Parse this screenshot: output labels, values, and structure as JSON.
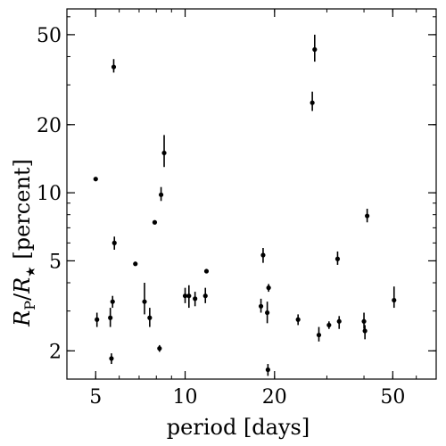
{
  "chart_data": {
    "type": "scatter",
    "title": "",
    "xlabel": "period [days]",
    "ylabel": {
      "R1": "R",
      "sub1": "P",
      "slash": "/",
      "R2": "R",
      "sub2": "★",
      "unit": " [percent]"
    },
    "xscale": "log",
    "yscale": "log",
    "xlim": [
      4.0,
      70.0
    ],
    "ylim": [
      1.5,
      65.0
    ],
    "xticks": [
      5,
      10,
      20,
      50
    ],
    "xtick_labels": [
      "5",
      "10",
      "20",
      "50"
    ],
    "yticks": [
      2,
      5,
      10,
      20,
      50
    ],
    "ytick_labels": [
      "2",
      "5",
      "10",
      "20",
      "50"
    ],
    "grid": false,
    "series": [
      {
        "marker_color": "#000000",
        "points": [
          {
            "x": 5.0,
            "y": 11.5,
            "ylo": 11.5,
            "yhi": 11.5
          },
          {
            "x": 5.05,
            "y": 2.75,
            "ylo": 2.55,
            "yhi": 2.95
          },
          {
            "x": 5.6,
            "y": 2.8,
            "ylo": 2.55,
            "yhi": 3.1
          },
          {
            "x": 5.65,
            "y": 1.85,
            "ylo": 1.75,
            "yhi": 1.95
          },
          {
            "x": 5.7,
            "y": 3.3,
            "ylo": 3.1,
            "yhi": 3.5
          },
          {
            "x": 5.75,
            "y": 36.0,
            "ylo": 34.0,
            "yhi": 39.0
          },
          {
            "x": 5.78,
            "y": 6.0,
            "ylo": 5.6,
            "yhi": 6.4
          },
          {
            "x": 6.8,
            "y": 4.85,
            "ylo": 4.85,
            "yhi": 4.85
          },
          {
            "x": 7.3,
            "y": 3.3,
            "ylo": 2.9,
            "yhi": 4.0
          },
          {
            "x": 7.6,
            "y": 2.8,
            "ylo": 2.55,
            "yhi": 3.1
          },
          {
            "x": 7.9,
            "y": 7.4,
            "ylo": 7.4,
            "yhi": 7.4
          },
          {
            "x": 8.2,
            "y": 2.05,
            "ylo": 1.98,
            "yhi": 2.12
          },
          {
            "x": 8.3,
            "y": 9.8,
            "ylo": 9.2,
            "yhi": 10.6
          },
          {
            "x": 8.5,
            "y": 15.0,
            "ylo": 13.0,
            "yhi": 18.0
          },
          {
            "x": 10.0,
            "y": 3.5,
            "ylo": 3.25,
            "yhi": 3.8
          },
          {
            "x": 10.3,
            "y": 3.5,
            "ylo": 3.1,
            "yhi": 3.9
          },
          {
            "x": 10.8,
            "y": 3.4,
            "ylo": 3.15,
            "yhi": 3.65
          },
          {
            "x": 11.7,
            "y": 3.5,
            "ylo": 3.25,
            "yhi": 3.8
          },
          {
            "x": 11.8,
            "y": 4.5,
            "ylo": 4.5,
            "yhi": 4.5
          },
          {
            "x": 18.0,
            "y": 3.15,
            "ylo": 2.95,
            "yhi": 3.4
          },
          {
            "x": 18.3,
            "y": 5.3,
            "ylo": 4.9,
            "yhi": 5.7
          },
          {
            "x": 18.9,
            "y": 2.95,
            "ylo": 2.65,
            "yhi": 3.3
          },
          {
            "x": 19.0,
            "y": 1.65,
            "ylo": 1.55,
            "yhi": 1.75
          },
          {
            "x": 19.1,
            "y": 3.8,
            "ylo": 3.65,
            "yhi": 3.95
          },
          {
            "x": 24.0,
            "y": 2.75,
            "ylo": 2.6,
            "yhi": 2.9
          },
          {
            "x": 26.8,
            "y": 25.0,
            "ylo": 23.0,
            "yhi": 28.0
          },
          {
            "x": 27.3,
            "y": 43.0,
            "ylo": 38.0,
            "yhi": 50.0
          },
          {
            "x": 28.2,
            "y": 2.35,
            "ylo": 2.2,
            "yhi": 2.55
          },
          {
            "x": 30.5,
            "y": 2.6,
            "ylo": 2.5,
            "yhi": 2.7
          },
          {
            "x": 32.6,
            "y": 5.1,
            "ylo": 4.8,
            "yhi": 5.5
          },
          {
            "x": 33.0,
            "y": 2.7,
            "ylo": 2.5,
            "yhi": 2.85
          },
          {
            "x": 40.0,
            "y": 2.7,
            "ylo": 2.5,
            "yhi": 2.95
          },
          {
            "x": 40.3,
            "y": 2.45,
            "ylo": 2.25,
            "yhi": 2.6
          },
          {
            "x": 41.0,
            "y": 7.9,
            "ylo": 7.4,
            "yhi": 8.5
          },
          {
            "x": 50.5,
            "y": 3.35,
            "ylo": 3.1,
            "yhi": 3.85
          }
        ]
      }
    ]
  }
}
